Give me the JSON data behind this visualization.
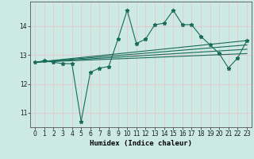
{
  "title": "",
  "xlabel": "Humidex (Indice chaleur)",
  "bg_color": "#cce9e4",
  "grid_color": "#e8c8c8",
  "line_color": "#1a6b5a",
  "xlim": [
    -0.5,
    23.5
  ],
  "ylim": [
    10.5,
    14.85
  ],
  "yticks": [
    11,
    12,
    13,
    14
  ],
  "xticks": [
    0,
    1,
    2,
    3,
    4,
    5,
    6,
    7,
    8,
    9,
    10,
    11,
    12,
    13,
    14,
    15,
    16,
    17,
    18,
    19,
    20,
    21,
    22,
    23
  ],
  "main_line_x": [
    0,
    1,
    2,
    3,
    4,
    5,
    6,
    7,
    8,
    9,
    10,
    11,
    12,
    13,
    14,
    15,
    16,
    17,
    18,
    19,
    20,
    21,
    22,
    23
  ],
  "main_line_y": [
    12.75,
    12.8,
    12.75,
    12.7,
    12.7,
    10.7,
    12.4,
    12.55,
    12.6,
    13.55,
    14.55,
    13.4,
    13.55,
    14.05,
    14.1,
    14.55,
    14.05,
    14.05,
    13.65,
    13.35,
    13.05,
    12.55,
    12.9,
    13.5
  ],
  "linear_lines": [
    {
      "x": [
        0,
        23
      ],
      "y": [
        12.75,
        13.5
      ]
    },
    {
      "x": [
        0,
        23
      ],
      "y": [
        12.75,
        13.35
      ]
    },
    {
      "x": [
        0,
        23
      ],
      "y": [
        12.75,
        13.2
      ]
    },
    {
      "x": [
        0,
        23
      ],
      "y": [
        12.75,
        13.05
      ]
    }
  ],
  "marker": "*",
  "markersize": 3.5,
  "linewidth": 0.8,
  "tick_fontsize": 5.5,
  "xlabel_fontsize": 6.5
}
